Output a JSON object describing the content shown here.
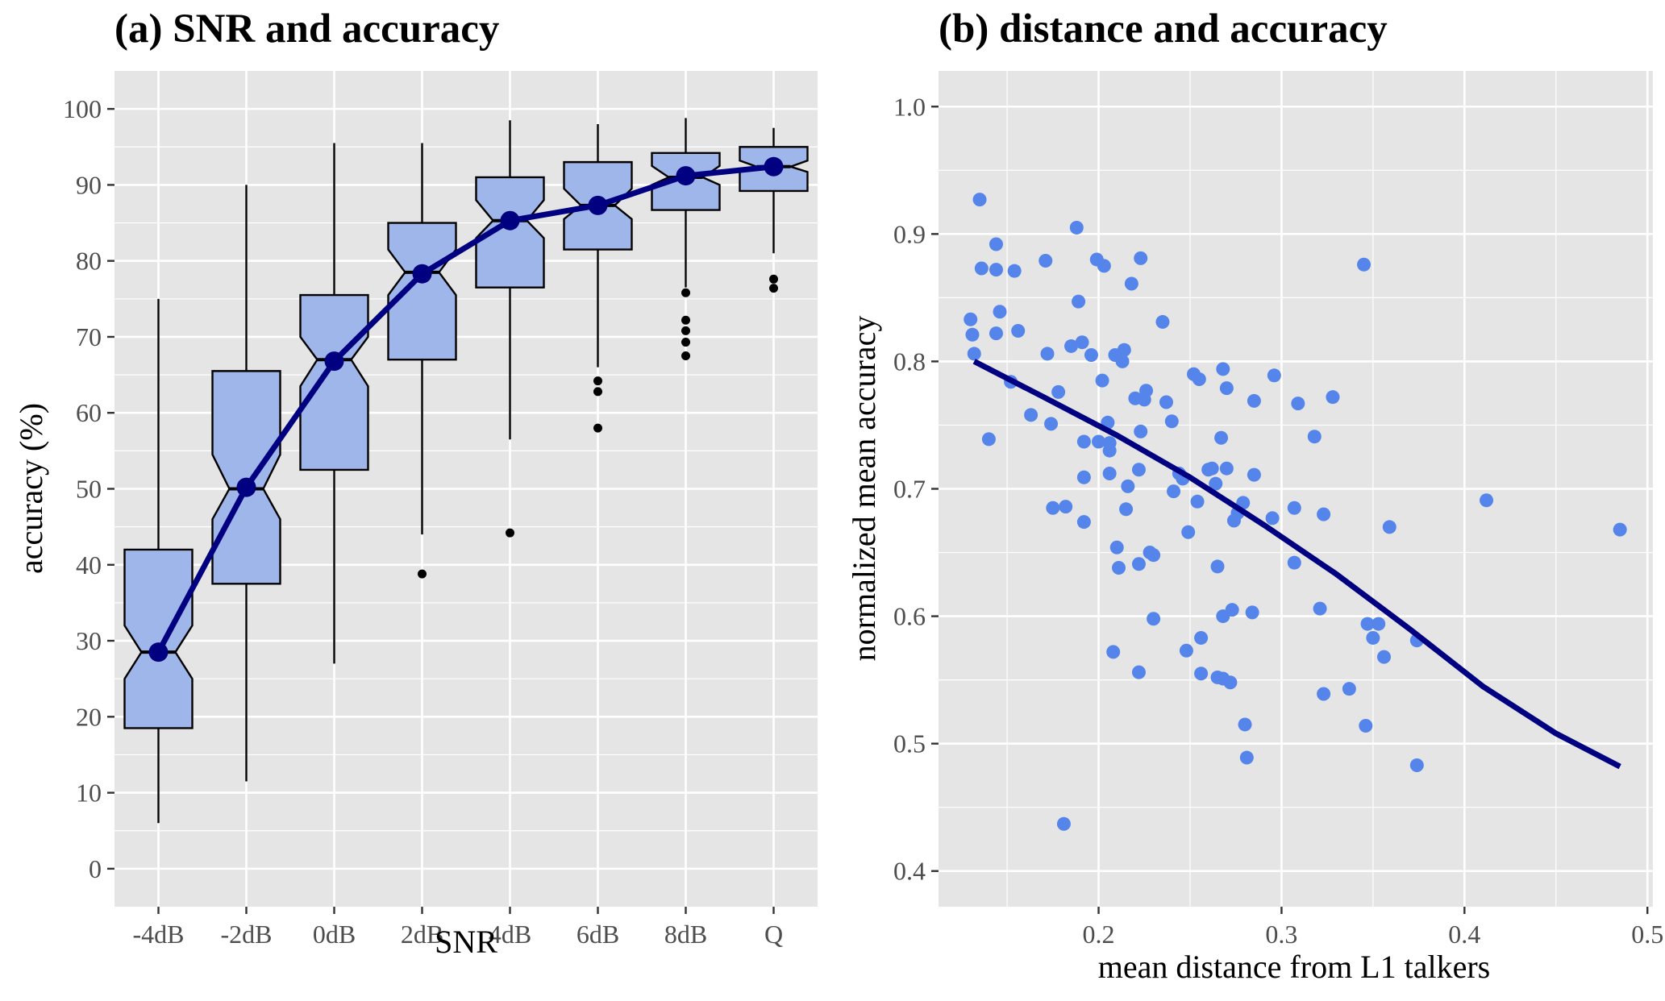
{
  "colors": {
    "panel_bg": "#e5e5e5",
    "box_fill": "#9fb6ea",
    "point_fill": "#5585ea",
    "line": "#000080"
  },
  "chart_data": [
    {
      "type": "boxplot",
      "title": "(a) SNR and accuracy",
      "xlabel": "SNR",
      "ylabel": "accuracy (%)",
      "ylim": [
        -5,
        105
      ],
      "yticks": [
        0,
        10,
        20,
        30,
        40,
        50,
        60,
        70,
        80,
        90,
        100
      ],
      "grid": true,
      "notched": true,
      "categories": [
        "-4dB",
        "-2dB",
        "0dB",
        "2dB",
        "4dB",
        "6dB",
        "8dB",
        "Q"
      ],
      "boxes": [
        {
          "min": 6,
          "q1": 18.5,
          "notch_low": 25,
          "median": 28.5,
          "notch_high": 32,
          "q3": 42,
          "max": 75,
          "outliers": []
        },
        {
          "min": 11.5,
          "q1": 37.5,
          "notch_low": 46,
          "median": 50,
          "notch_high": 54.5,
          "q3": 65.5,
          "max": 90,
          "outliers": []
        },
        {
          "min": 27,
          "q1": 52.5,
          "notch_low": 63.5,
          "median": 67,
          "notch_high": 70,
          "q3": 75.5,
          "max": 95.5,
          "outliers": []
        },
        {
          "min": 44,
          "q1": 67,
          "notch_low": 75.5,
          "median": 78.5,
          "notch_high": 81.5,
          "q3": 85,
          "max": 95.5,
          "outliers": [
            38.8
          ]
        },
        {
          "min": 56.5,
          "q1": 76.5,
          "notch_low": 83,
          "median": 85.3,
          "notch_high": 88,
          "q3": 91,
          "max": 98.5,
          "outliers": [
            44.2
          ]
        },
        {
          "min": 66,
          "q1": 81.5,
          "notch_low": 85.5,
          "median": 87.3,
          "notch_high": 89.5,
          "q3": 93,
          "max": 98,
          "outliers": [
            64.2,
            62.8,
            58
          ]
        },
        {
          "min": 76.5,
          "q1": 86.7,
          "notch_low": 90,
          "median": 91,
          "notch_high": 92.5,
          "q3": 94.2,
          "max": 98.8,
          "outliers": [
            75.8,
            72.2,
            70.8,
            69.3,
            67.5
          ]
        },
        {
          "min": 81,
          "q1": 89.2,
          "notch_low": 91.7,
          "median": 92.4,
          "notch_high": 93.2,
          "q3": 95,
          "max": 97.5,
          "outliers": [
            77.6,
            76.4
          ]
        }
      ],
      "mean_line": [
        28.5,
        50.2,
        66.8,
        78.3,
        85.3,
        87.3,
        91.2,
        92.4
      ]
    },
    {
      "type": "scatter",
      "title": "(b) distance and accuracy",
      "xlabel": "mean distance from L1 talkers",
      "ylabel": "normalized mean accuracy",
      "xlim": [
        0.1125,
        0.503
      ],
      "ylim": [
        0.372,
        1.028
      ],
      "xticks": [
        0.2,
        0.3,
        0.4,
        0.5
      ],
      "xtick_labels": [
        "0.2",
        "0.3",
        "0.4",
        "0.5"
      ],
      "yticks": [
        0.4,
        0.5,
        0.6,
        0.7,
        0.8,
        0.9,
        1.0
      ],
      "ytick_labels": [
        "0.4",
        "0.5",
        "0.6",
        "0.7",
        "0.8",
        "0.9",
        "1.0"
      ],
      "grid": true,
      "points": [
        [
          0.13,
          0.833
        ],
        [
          0.131,
          0.821
        ],
        [
          0.132,
          0.806
        ],
        [
          0.135,
          0.927
        ],
        [
          0.136,
          0.873
        ],
        [
          0.14,
          0.739
        ],
        [
          0.144,
          0.892
        ],
        [
          0.144,
          0.872
        ],
        [
          0.144,
          0.822
        ],
        [
          0.146,
          0.839
        ],
        [
          0.152,
          0.784
        ],
        [
          0.154,
          0.871
        ],
        [
          0.156,
          0.824
        ],
        [
          0.163,
          0.758
        ],
        [
          0.171,
          0.879
        ],
        [
          0.172,
          0.806
        ],
        [
          0.174,
          0.751
        ],
        [
          0.175,
          0.685
        ],
        [
          0.178,
          0.776
        ],
        [
          0.181,
          0.437
        ],
        [
          0.182,
          0.686
        ],
        [
          0.185,
          0.812
        ],
        [
          0.188,
          0.905
        ],
        [
          0.189,
          0.847
        ],
        [
          0.191,
          0.815
        ],
        [
          0.192,
          0.737
        ],
        [
          0.192,
          0.709
        ],
        [
          0.192,
          0.674
        ],
        [
          0.196,
          0.805
        ],
        [
          0.199,
          0.88
        ],
        [
          0.2,
          0.737
        ],
        [
          0.202,
          0.785
        ],
        [
          0.203,
          0.875
        ],
        [
          0.205,
          0.752
        ],
        [
          0.206,
          0.736
        ],
        [
          0.206,
          0.712
        ],
        [
          0.206,
          0.73
        ],
        [
          0.208,
          0.572
        ],
        [
          0.209,
          0.805
        ],
        [
          0.21,
          0.654
        ],
        [
          0.211,
          0.638
        ],
        [
          0.213,
          0.8
        ],
        [
          0.214,
          0.809
        ],
        [
          0.215,
          0.684
        ],
        [
          0.216,
          0.702
        ],
        [
          0.218,
          0.861
        ],
        [
          0.22,
          0.771
        ],
        [
          0.222,
          0.641
        ],
        [
          0.222,
          0.715
        ],
        [
          0.222,
          0.556
        ],
        [
          0.223,
          0.881
        ],
        [
          0.223,
          0.745
        ],
        [
          0.225,
          0.77
        ],
        [
          0.226,
          0.777
        ],
        [
          0.228,
          0.65
        ],
        [
          0.23,
          0.648
        ],
        [
          0.23,
          0.598
        ],
        [
          0.235,
          0.831
        ],
        [
          0.237,
          0.768
        ],
        [
          0.24,
          0.753
        ],
        [
          0.241,
          0.698
        ],
        [
          0.244,
          0.712
        ],
        [
          0.246,
          0.708
        ],
        [
          0.248,
          0.573
        ],
        [
          0.249,
          0.666
        ],
        [
          0.252,
          0.79
        ],
        [
          0.254,
          0.69
        ],
        [
          0.255,
          0.786
        ],
        [
          0.256,
          0.583
        ],
        [
          0.256,
          0.555
        ],
        [
          0.26,
          0.715
        ],
        [
          0.262,
          0.716
        ],
        [
          0.264,
          0.704
        ],
        [
          0.265,
          0.639
        ],
        [
          0.265,
          0.552
        ],
        [
          0.267,
          0.74
        ],
        [
          0.268,
          0.6
        ],
        [
          0.268,
          0.551
        ],
        [
          0.268,
          0.794
        ],
        [
          0.27,
          0.716
        ],
        [
          0.27,
          0.779
        ],
        [
          0.272,
          0.548
        ],
        [
          0.273,
          0.605
        ],
        [
          0.274,
          0.675
        ],
        [
          0.276,
          0.681
        ],
        [
          0.279,
          0.689
        ],
        [
          0.28,
          0.515
        ],
        [
          0.281,
          0.489
        ],
        [
          0.284,
          0.603
        ],
        [
          0.285,
          0.711
        ],
        [
          0.285,
          0.769
        ],
        [
          0.295,
          0.677
        ],
        [
          0.296,
          0.789
        ],
        [
          0.307,
          0.685
        ],
        [
          0.307,
          0.642
        ],
        [
          0.309,
          0.767
        ],
        [
          0.318,
          0.741
        ],
        [
          0.321,
          0.606
        ],
        [
          0.323,
          0.68
        ],
        [
          0.323,
          0.539
        ],
        [
          0.328,
          0.772
        ],
        [
          0.337,
          0.543
        ],
        [
          0.345,
          0.876
        ],
        [
          0.346,
          0.514
        ],
        [
          0.347,
          0.594
        ],
        [
          0.35,
          0.583
        ],
        [
          0.353,
          0.594
        ],
        [
          0.356,
          0.568
        ],
        [
          0.359,
          0.67
        ],
        [
          0.374,
          0.581
        ],
        [
          0.374,
          0.483
        ],
        [
          0.412,
          0.691
        ],
        [
          0.485,
          0.668
        ]
      ],
      "fit_line": [
        [
          0.132,
          0.8
        ],
        [
          0.17,
          0.772
        ],
        [
          0.21,
          0.742
        ],
        [
          0.25,
          0.709
        ],
        [
          0.29,
          0.672
        ],
        [
          0.33,
          0.633
        ],
        [
          0.37,
          0.59
        ],
        [
          0.41,
          0.545
        ],
        [
          0.45,
          0.508
        ],
        [
          0.485,
          0.482
        ]
      ]
    }
  ]
}
